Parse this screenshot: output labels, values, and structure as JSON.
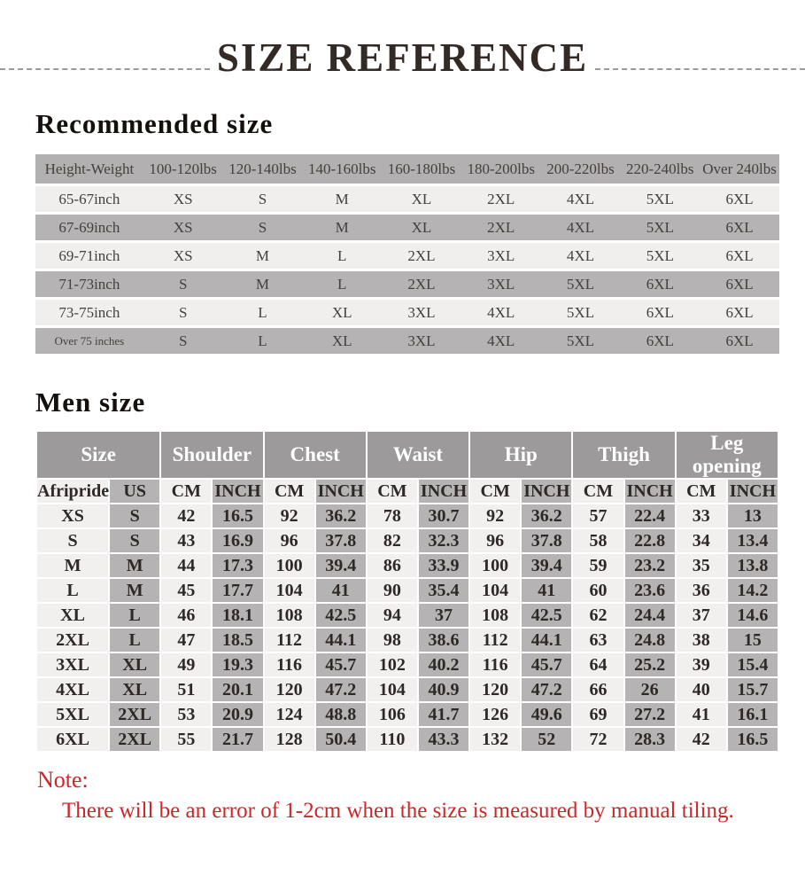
{
  "page": {
    "title": "SIZE REFERENCE",
    "note_label": "Note:",
    "note_text": "There will be an error of 1-2cm when the size is measured by manual tiling."
  },
  "recommended": {
    "heading": "Recommended size",
    "columns": [
      "Height-Weight",
      "100-120lbs",
      "120-140lbs",
      "140-160lbs",
      "160-180lbs",
      "180-200lbs",
      "200-220lbs",
      "220-240lbs",
      "Over 240lbs"
    ],
    "rows": [
      {
        "label": "65-67inch",
        "values": [
          "XS",
          "S",
          "M",
          "XL",
          "2XL",
          "4XL",
          "5XL",
          "6XL"
        ]
      },
      {
        "label": "67-69inch",
        "values": [
          "XS",
          "S",
          "M",
          "XL",
          "2XL",
          "4XL",
          "5XL",
          "6XL"
        ]
      },
      {
        "label": "69-71inch",
        "values": [
          "XS",
          "M",
          "L",
          "2XL",
          "3XL",
          "4XL",
          "5XL",
          "6XL"
        ]
      },
      {
        "label": "71-73inch",
        "values": [
          "S",
          "M",
          "L",
          "2XL",
          "3XL",
          "5XL",
          "6XL",
          "6XL"
        ]
      },
      {
        "label": "73-75inch",
        "values": [
          "S",
          "L",
          "XL",
          "3XL",
          "4XL",
          "5XL",
          "6XL",
          "6XL"
        ]
      },
      {
        "label": "Over 75 inches",
        "values": [
          "S",
          "L",
          "XL",
          "3XL",
          "4XL",
          "5XL",
          "6XL",
          "6XL"
        ]
      }
    ]
  },
  "men": {
    "heading": "Men size",
    "groups": [
      {
        "label": "Size",
        "span": 2
      },
      {
        "label": "Shoulder",
        "span": 2
      },
      {
        "label": "Chest",
        "span": 2
      },
      {
        "label": "Waist",
        "span": 2
      },
      {
        "label": "Hip",
        "span": 2
      },
      {
        "label": "Thigh",
        "span": 2
      },
      {
        "label": "Leg opening",
        "span": 2
      }
    ],
    "subheader": [
      "Afripride",
      "US",
      "CM",
      "INCH",
      "CM",
      "INCH",
      "CM",
      "INCH",
      "CM",
      "INCH",
      "CM",
      "INCH",
      "CM",
      "INCH"
    ],
    "rows": [
      [
        "XS",
        "S",
        "42",
        "16.5",
        "92",
        "36.2",
        "78",
        "30.7",
        "92",
        "36.2",
        "57",
        "22.4",
        "33",
        "13"
      ],
      [
        "S",
        "S",
        "43",
        "16.9",
        "96",
        "37.8",
        "82",
        "32.3",
        "96",
        "37.8",
        "58",
        "22.8",
        "34",
        "13.4"
      ],
      [
        "M",
        "M",
        "44",
        "17.3",
        "100",
        "39.4",
        "86",
        "33.9",
        "100",
        "39.4",
        "59",
        "23.2",
        "35",
        "13.8"
      ],
      [
        "L",
        "M",
        "45",
        "17.7",
        "104",
        "41",
        "90",
        "35.4",
        "104",
        "41",
        "60",
        "23.6",
        "36",
        "14.2"
      ],
      [
        "XL",
        "L",
        "46",
        "18.1",
        "108",
        "42.5",
        "94",
        "37",
        "108",
        "42.5",
        "62",
        "24.4",
        "37",
        "14.6"
      ],
      [
        "2XL",
        "L",
        "47",
        "18.5",
        "112",
        "44.1",
        "98",
        "38.6",
        "112",
        "44.1",
        "63",
        "24.8",
        "38",
        "15"
      ],
      [
        "3XL",
        "XL",
        "49",
        "19.3",
        "116",
        "45.7",
        "102",
        "40.2",
        "116",
        "45.7",
        "64",
        "25.2",
        "39",
        "15.4"
      ],
      [
        "4XL",
        "XL",
        "51",
        "20.1",
        "120",
        "47.2",
        "104",
        "40.9",
        "120",
        "47.2",
        "66",
        "26",
        "40",
        "15.7"
      ],
      [
        "5XL",
        "2XL",
        "53",
        "20.9",
        "124",
        "48.8",
        "106",
        "41.7",
        "126",
        "49.6",
        "69",
        "27.2",
        "41",
        "16.1"
      ],
      [
        "6XL",
        "2XL",
        "55",
        "21.7",
        "128",
        "50.4",
        "110",
        "43.3",
        "132",
        "52",
        "72",
        "28.3",
        "42",
        "16.5"
      ]
    ]
  },
  "colors": {
    "note_red": "#cf2428",
    "header_gray": "#9c9a9a",
    "band_gray": "#b5b3b3",
    "band_light": "#f0efee",
    "title_ink": "#332a26",
    "dash_gray": "#9b9b9b"
  }
}
